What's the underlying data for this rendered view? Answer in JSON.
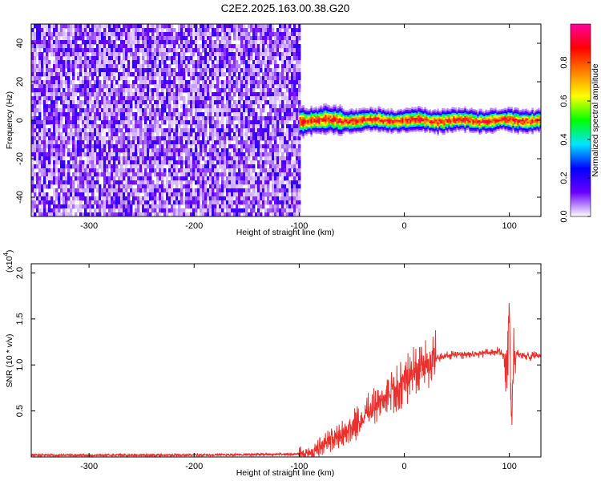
{
  "title": "C2E2.2025.163.00.38.G20",
  "chart_data": [
    {
      "type": "heatmap",
      "xlabel": "Height of straight line (km)",
      "ylabel": "Frequency (Hz)",
      "xlim": [
        -355,
        130
      ],
      "ylim": [
        -50,
        50
      ],
      "x_ticks": [
        -300,
        -200,
        -100,
        0,
        100
      ],
      "x_tick_labels": [
        "-300",
        "-200",
        "-100",
        "0",
        "100"
      ],
      "y_ticks": [
        -40,
        -20,
        0,
        20,
        40
      ],
      "y_tick_labels": [
        "-40",
        "-20",
        "0",
        "20",
        "40"
      ],
      "colorbar": {
        "label": "Normalized spectral amplitude",
        "range": [
          0,
          1
        ],
        "ticks": [
          0.0,
          0.2,
          0.4,
          0.6,
          0.8
        ],
        "tick_labels": [
          "0.0",
          "0.2",
          "0.4",
          "0.6",
          "0.8"
        ],
        "colormap": [
          "#ffffff",
          "#6a00ff",
          "#0000ff",
          "#00e5ff",
          "#00ff00",
          "#ffff00",
          "#ff8000",
          "#ff0000",
          "#ff00a0"
        ]
      },
      "regions": [
        {
          "x_range": [
            -355,
            -100
          ],
          "frequency_range": [
            -50,
            50
          ],
          "amplitude": 0.12,
          "description": "broadband noise"
        },
        {
          "x_range": [
            -100,
            130
          ],
          "frequency_center": 0,
          "frequency_halfwidth": 6,
          "peak_amplitude": 0.95
        }
      ]
    },
    {
      "type": "line",
      "xlabel": "Height of straight line (km)",
      "ylabel": "SNR (10 * v/v)",
      "y_multiplier": "(x10",
      "y_multiplier_exp": "4",
      "y_multiplier_close": ")",
      "xlim": [
        -355,
        130
      ],
      "ylim": [
        0,
        2.1
      ],
      "x_ticks": [
        -300,
        -200,
        -100,
        0,
        100
      ],
      "x_tick_labels": [
        "-300",
        "-200",
        "-100",
        "0",
        "100"
      ],
      "y_ticks": [
        0.5,
        1.0,
        1.5,
        2.0
      ],
      "y_tick_labels": [
        "0.5",
        "1.0",
        "1.5",
        "2.0"
      ],
      "line_color": "#e8312c",
      "series": [
        {
          "x": [
            -355,
            -300,
            -250,
            -200,
            -150,
            -100,
            -85,
            -80,
            -70,
            -60,
            -50,
            -40,
            -30,
            -20,
            -10,
            0,
            10,
            20,
            30,
            40,
            60,
            80,
            90,
            95,
            98,
            100,
            102,
            104,
            110,
            120,
            130
          ],
          "y": [
            0.02,
            0.02,
            0.02,
            0.02,
            0.025,
            0.03,
            0.06,
            0.12,
            0.18,
            0.25,
            0.32,
            0.42,
            0.55,
            0.62,
            0.72,
            0.82,
            0.92,
            1.0,
            1.07,
            1.1,
            1.12,
            1.13,
            1.15,
            1.1,
            0.95,
            1.7,
            0.4,
            1.1,
            1.12,
            1.09,
            1.1
          ]
        }
      ]
    }
  ]
}
